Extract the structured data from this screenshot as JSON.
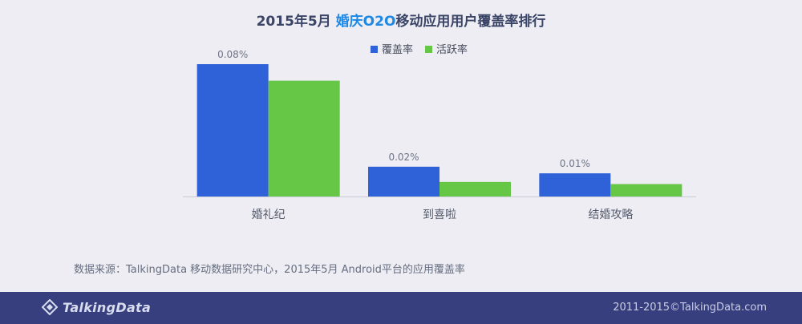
{
  "title": {
    "prefix": "2015年5月",
    "highlight": "婚庆O2O",
    "suffix": "移动应用用户覆盖率排行"
  },
  "chart_data": {
    "type": "bar",
    "categories": [
      "婚礼纪",
      "到喜啦",
      "结婚攻略"
    ],
    "series": [
      {
        "name": "覆盖率",
        "values": [
          0.08,
          0.018,
          0.014
        ],
        "color": "#2f62d8",
        "labels": [
          "0.08%",
          "0.02%",
          "0.01%"
        ]
      },
      {
        "name": "活跃率",
        "values": [
          0.07,
          0.0088,
          0.0075
        ],
        "color": "#66c646"
      }
    ],
    "ylim": [
      0,
      0.08
    ],
    "legend": "top-center",
    "grid": false
  },
  "source": "数据来源：TalkingData 移动数据研究中心，2015年5月 Android平台的应用覆盖率",
  "footer": {
    "logo_text": "TalkingData",
    "copyright": "2011-2015©TalkingData.com"
  },
  "colors": {
    "background": "#ededf3",
    "footer": "#373f7e",
    "title": "#3a4466",
    "accent": "#1e88e5"
  }
}
